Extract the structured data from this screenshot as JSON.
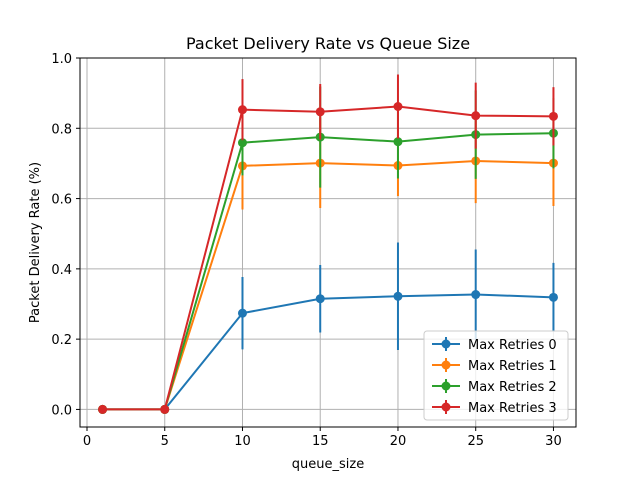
{
  "chart_data": {
    "type": "line",
    "title": "Packet Delivery Rate vs Queue Size",
    "xlabel": "queue_size",
    "ylabel": "Packet Delivery Rate (%)",
    "xlim": [
      -0.45,
      31.45
    ],
    "ylim": [
      -0.05,
      1.0
    ],
    "xticks": [
      0,
      5,
      10,
      15,
      20,
      25,
      30
    ],
    "yticks": [
      0.0,
      0.2,
      0.4,
      0.6,
      0.8,
      1.0
    ],
    "xtick_labels": [
      "0",
      "5",
      "10",
      "15",
      "20",
      "25",
      "30"
    ],
    "ytick_labels": [
      "0.0",
      "0.2",
      "0.4",
      "0.6",
      "0.8",
      "1.0"
    ],
    "grid": true,
    "legend_position": "bottom-right",
    "x": [
      1,
      5,
      10,
      15,
      20,
      25,
      30
    ],
    "series": [
      {
        "name": "Max Retries 0",
        "color": "#1f77b4",
        "values": [
          0.0,
          0.0,
          0.274,
          0.315,
          0.322,
          0.327,
          0.319
        ],
        "errors": [
          0.0,
          0.0,
          0.103,
          0.096,
          0.153,
          0.128,
          0.098
        ]
      },
      {
        "name": "Max Retries 1",
        "color": "#ff7f0e",
        "values": [
          0.0,
          0.0,
          0.693,
          0.701,
          0.694,
          0.707,
          0.701
        ],
        "errors": [
          0.0,
          0.0,
          0.124,
          0.128,
          0.087,
          0.12,
          0.122
        ]
      },
      {
        "name": "Max Retries 2",
        "color": "#2ca02c",
        "values": [
          0.0,
          0.0,
          0.759,
          0.775,
          0.762,
          0.782,
          0.786
        ],
        "errors": [
          0.0,
          0.0,
          0.093,
          0.144,
          0.105,
          0.126,
          0.1
        ]
      },
      {
        "name": "Max Retries 3",
        "color": "#d62728",
        "values": [
          0.0,
          0.0,
          0.853,
          0.847,
          0.862,
          0.836,
          0.834
        ],
        "errors": [
          0.0,
          0.0,
          0.087,
          0.079,
          0.091,
          0.094,
          0.083
        ]
      }
    ]
  }
}
